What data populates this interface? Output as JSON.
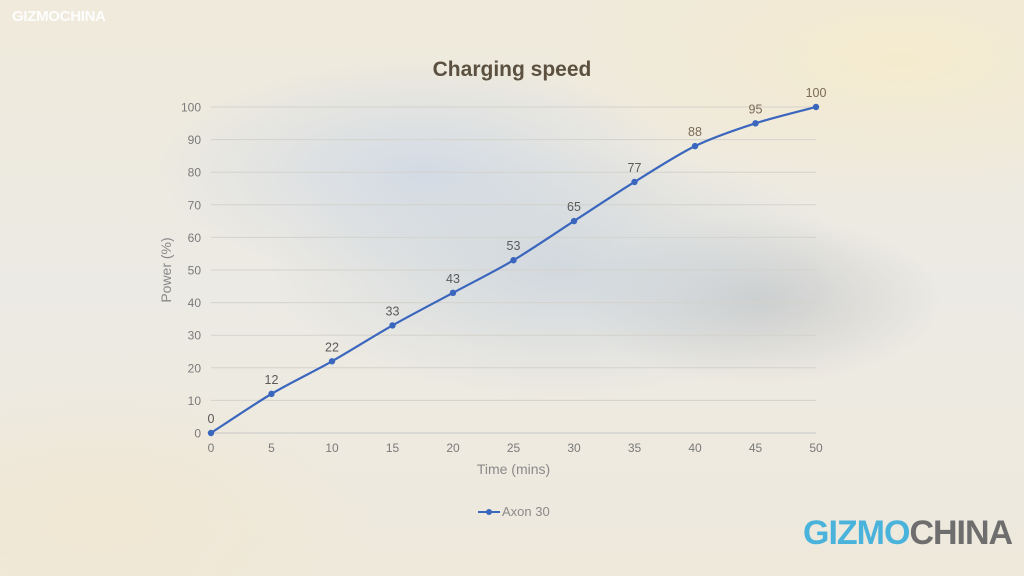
{
  "watermark_top": "GIZMOCHINA",
  "watermark_bottom": {
    "part1": "GIZMO",
    "part2": "CHINA"
  },
  "chart_data": {
    "type": "line",
    "title": "Charging speed",
    "xlabel": "Time (mins)",
    "ylabel": "Power (%)",
    "x": [
      0,
      5,
      10,
      15,
      20,
      25,
      30,
      35,
      40,
      45,
      50
    ],
    "series": [
      {
        "name": "Axon 30",
        "color": "#3a66bd",
        "values": [
          0,
          12,
          22,
          33,
          43,
          53,
          65,
          77,
          88,
          95,
          100
        ]
      }
    ],
    "xticks": [
      0,
      5,
      10,
      15,
      20,
      25,
      30,
      35,
      40,
      45,
      50
    ],
    "yticks": [
      0,
      10,
      20,
      30,
      40,
      50,
      60,
      70,
      80,
      90,
      100
    ],
    "xlim": [
      0,
      50
    ],
    "ylim": [
      0,
      100
    ],
    "grid": "horizontal",
    "data_labels": true,
    "legend_position": "bottom"
  }
}
